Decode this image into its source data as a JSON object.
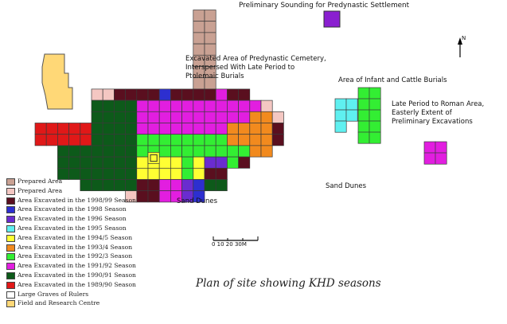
{
  "labels": {
    "sounding": "Preliminary Sounding for Predynastic Settlement",
    "cemetery": [
      "Excavated Area of Predynastic Cemetery,",
      "Interspersed With Late Period to",
      "Ptolemaic Burials"
    ],
    "infant": "Area of Infant and Cattle Burials",
    "late_roman": [
      "Late Period to Roman Area,",
      "Easterly Extent of",
      "Preliminary Excavations"
    ],
    "sand_dunes_1": "Sand Dunes",
    "sand_dunes_2": "Sand Dunes",
    "north": "N"
  },
  "scale": {
    "text": "0  10  20  30M"
  },
  "caption": "Plan of site showing KHD seasons",
  "legend": [
    {
      "key": "prepared_a",
      "label": "Prepared Area",
      "color": "#c9a193"
    },
    {
      "key": "prepared_b",
      "label": "Prepared Area",
      "color": "#f4c7c2"
    },
    {
      "key": "s1998_99",
      "label": "Area Excavated in the 1998/99 Season",
      "color": "#5a0f1f"
    },
    {
      "key": "s1998",
      "label": "Area Excavated in the 1998 Season",
      "color": "#2d2fd0"
    },
    {
      "key": "s1996",
      "label": "Area Excavated in the 1996 Season",
      "color": "#6a2cd0"
    },
    {
      "key": "s1995",
      "label": "Area Excavated in the 1995 Season",
      "color": "#5ff0f0"
    },
    {
      "key": "s1994_5",
      "label": "Area Excavated in the 1994/5 Season",
      "color": "#ffff33"
    },
    {
      "key": "s1993_4",
      "label": "Area Excavated in the 1993/4 Season",
      "color": "#f28a1e"
    },
    {
      "key": "s1992_3",
      "label": "Area Excavated in the 1992/3 Season",
      "color": "#33ee33"
    },
    {
      "key": "s1991_92",
      "label": "Area Excavated in the 1991/92 Season",
      "color": "#e21ee0"
    },
    {
      "key": "s1990_91",
      "label": "Area Excavated in the 1990/91 Season",
      "color": "#0d5a1a"
    },
    {
      "key": "s1989_90",
      "label": "Area Excavated in the 1989/90 Season",
      "color": "#e01818"
    },
    {
      "key": "large_graves",
      "label": "Large Graves of Rulers",
      "color": "#ffffff"
    },
    {
      "key": "field_centre",
      "label": "Field and Research Centre",
      "color": "#ffd877"
    }
  ]
}
